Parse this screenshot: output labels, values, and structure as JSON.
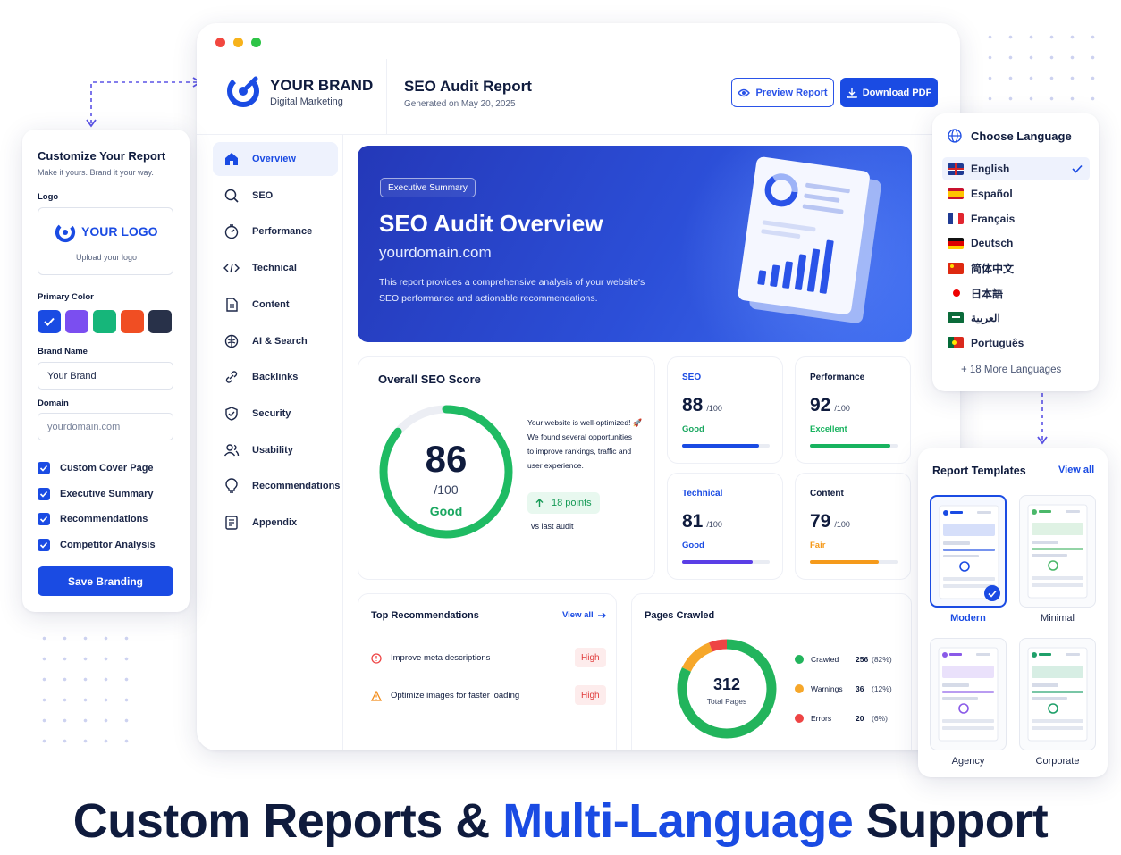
{
  "customize": {
    "title": "Customize Your Report",
    "subtitle": "Make it yours. Brand it your way.",
    "logo_label": "Logo",
    "logo_text": "YOUR LOGO",
    "logo_upload": "Upload your logo",
    "primary_color_label": "Primary Color",
    "colors": [
      "#1a4be3",
      "#7b4ef0",
      "#16b67a",
      "#f04e23",
      "#283149"
    ],
    "brand_name_label": "Brand Name",
    "brand_name_value": "Your Brand",
    "domain_label": "Domain",
    "domain_placeholder": "yourdomain.com",
    "checkboxes": [
      "Custom Cover Page",
      "Executive Summary",
      "Recommendations",
      "Competitor Analysis"
    ],
    "save_label": "Save Branding"
  },
  "header": {
    "brand": "YOUR BRAND",
    "brand_sub": "Digital Marketing",
    "report_title": "SEO Audit Report",
    "generated": "Generated on May 20, 2025",
    "preview_label": "Preview Report",
    "download_label": "Download PDF"
  },
  "nav": [
    {
      "label": "Overview",
      "icon": "home-icon"
    },
    {
      "label": "SEO",
      "icon": "search-icon"
    },
    {
      "label": "Performance",
      "icon": "gauge-icon"
    },
    {
      "label": "Technical",
      "icon": "code-icon"
    },
    {
      "label": "Content",
      "icon": "document-icon"
    },
    {
      "label": "AI & Search",
      "icon": "brain-icon"
    },
    {
      "label": "Backlinks",
      "icon": "link-icon"
    },
    {
      "label": "Security",
      "icon": "shield-icon"
    },
    {
      "label": "Usability",
      "icon": "users-icon"
    },
    {
      "label": "Recommendations",
      "icon": "lightbulb-icon"
    },
    {
      "label": "Appendix",
      "icon": "appendix-icon"
    }
  ],
  "hero": {
    "badge": "Executive Summary",
    "title": "SEO Audit Overview",
    "domain": "yourdomain.com",
    "desc1": "This report provides a comprehensive analysis of your website's",
    "desc2": "SEO performance and actionable recommendations."
  },
  "overall": {
    "title": "Overall SEO Score",
    "score": "86",
    "out_of": "/100",
    "grade": "Good",
    "score_fraction": 0.86,
    "note1": "Your website is well-optimized! 🚀",
    "note2": "We found several opportunities",
    "note3": "to improve rankings, traffic and",
    "note4": "user experience.",
    "delta": "18 points",
    "delta_sub": "vs last audit"
  },
  "scores": [
    {
      "label": "SEO",
      "value": "88",
      "out": "/100",
      "grade": "Good",
      "fraction": 0.88,
      "color": "#1a4be3",
      "grade_color": "#1aa760",
      "title_color": "#1a4be3"
    },
    {
      "label": "Performance",
      "value": "92",
      "out": "/100",
      "grade": "Excellent",
      "fraction": 0.92,
      "color": "#18b35f",
      "grade_color": "#18b35f",
      "title_color": "#0f1b3d"
    },
    {
      "label": "Technical",
      "value": "81",
      "out": "/100",
      "grade": "Good",
      "fraction": 0.81,
      "color": "#5a3ee6",
      "grade_color": "#1a4be3",
      "title_color": "#1a4be3"
    },
    {
      "label": "Content",
      "value": "79",
      "out": "/100",
      "grade": "Fair",
      "fraction": 0.79,
      "color": "#f59a1b",
      "grade_color": "#f59a1b",
      "title_color": "#0f1b3d"
    }
  ],
  "recommendations": {
    "title": "Top Recommendations",
    "view_all": "View all",
    "items": [
      {
        "text": "Improve meta descriptions",
        "badge": "High"
      },
      {
        "text": "Optimize images for faster loading",
        "badge": "High"
      }
    ]
  },
  "pages": {
    "title": "Pages Crawled",
    "total": "312",
    "total_label": "Total Pages",
    "rows": [
      {
        "label": "Crawled",
        "value": "256",
        "pct": "(82%)",
        "color": "#22b45c",
        "fraction": 0.82
      },
      {
        "label": "Warnings",
        "value": "36",
        "pct": "(12%)",
        "color": "#f6a72a",
        "fraction": 0.12
      },
      {
        "label": "Errors",
        "value": "20",
        "pct": "(6%)",
        "color": "#ee4444",
        "fraction": 0.06
      }
    ]
  },
  "language": {
    "title": "Choose Language",
    "items": [
      "English",
      "Español",
      "Français",
      "Deutsch",
      "简体中文",
      "日本語",
      "العربية",
      "Português"
    ],
    "more": "+ 18 More Languages"
  },
  "templates": {
    "title": "Report Templates",
    "view_all": "View all",
    "items": [
      {
        "label": "Modern",
        "accent": "#1a4be3"
      },
      {
        "label": "Minimal",
        "accent": "#4bb86a"
      },
      {
        "label": "Agency",
        "accent": "#8a5ae8"
      },
      {
        "label": "Corporate",
        "accent": "#1fa06a"
      }
    ]
  },
  "headline": {
    "part1": "Custom Reports & ",
    "part2": "Multi-Language",
    "part3": " Support"
  }
}
